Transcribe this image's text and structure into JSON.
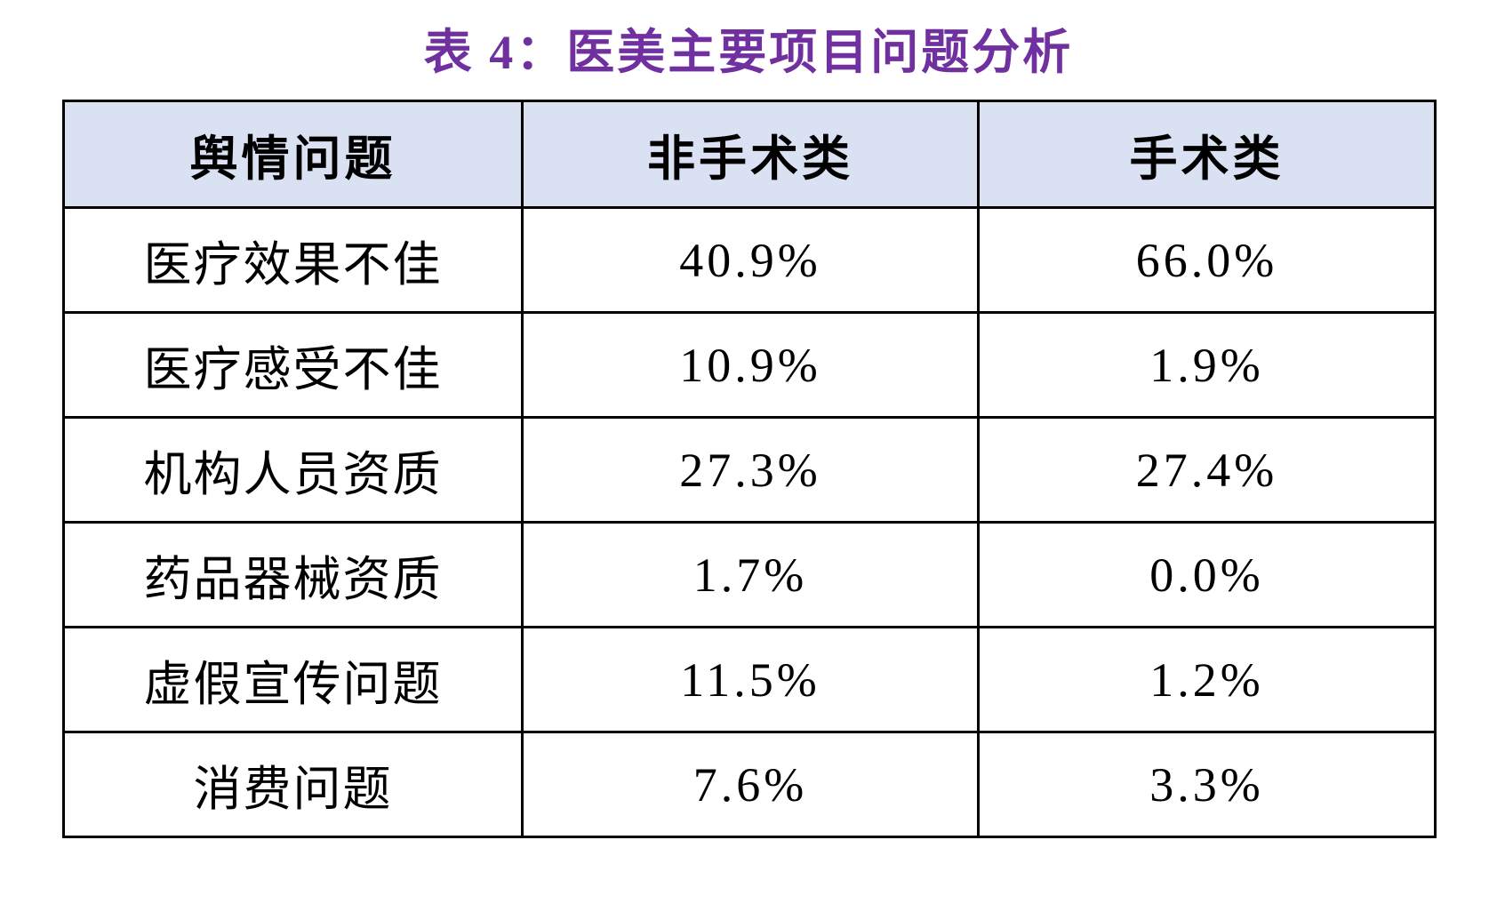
{
  "title": "表 4：医美主要项目问题分析",
  "colors": {
    "title_purple": "#7030A0",
    "header_background": "#D9E1F2",
    "border": "#000000",
    "body_background": "#ffffff"
  },
  "table": {
    "columns": [
      "舆情问题",
      "非手术类",
      "手术类"
    ],
    "rows": [
      {
        "issue": "医疗效果不佳",
        "non_surgical": "40.9%",
        "surgical": "66.0%"
      },
      {
        "issue": "医疗感受不佳",
        "non_surgical": "10.9%",
        "surgical": "1.9%"
      },
      {
        "issue": "机构人员资质",
        "non_surgical": "27.3%",
        "surgical": "27.4%"
      },
      {
        "issue": "药品器械资质",
        "non_surgical": "1.7%",
        "surgical": "0.0%"
      },
      {
        "issue": "虚假宣传问题",
        "non_surgical": "11.5%",
        "surgical": "1.2%"
      },
      {
        "issue": "消费问题",
        "non_surgical": "7.6%",
        "surgical": "3.3%"
      }
    ]
  },
  "chart_data": {
    "type": "table",
    "title": "表 4：医美主要项目问题分析",
    "columns": [
      "舆情问题",
      "非手术类",
      "手术类"
    ],
    "categories": [
      "医疗效果不佳",
      "医疗感受不佳",
      "机构人员资质",
      "药品器械资质",
      "虚假宣传问题",
      "消费问题"
    ],
    "series": [
      {
        "name": "非手术类",
        "values": [
          40.9,
          10.9,
          27.3,
          1.7,
          11.5,
          7.6
        ]
      },
      {
        "name": "手术类",
        "values": [
          66.0,
          1.9,
          27.4,
          0.0,
          1.2,
          3.3
        ]
      }
    ],
    "unit": "%",
    "layout_hints": {
      "header_background": "#D9E1F2",
      "title_color": "#7030A0",
      "grid": "full-borders",
      "value_alignment": "center"
    }
  }
}
